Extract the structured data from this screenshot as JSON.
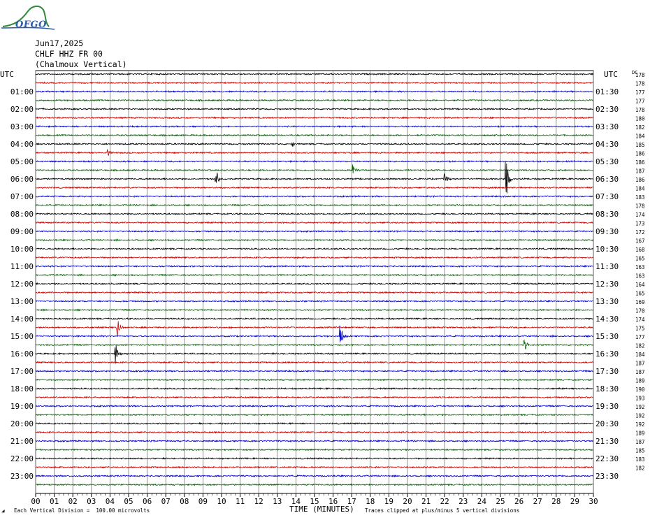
{
  "header": {
    "logo_text": "OFGO",
    "date": "Jun17,2025",
    "station": "CHLF HHZ FR 00",
    "location": "(Chalmoux Vertical)"
  },
  "chart_data": {
    "type": "line",
    "title": "",
    "left_axis_label": "UTC",
    "right_axis_label": "UTC",
    "dc_label": "DC",
    "left_hour_labels": [
      "01:00",
      "02:00",
      "03:00",
      "04:00",
      "05:00",
      "06:00",
      "07:00",
      "08:00",
      "09:00",
      "10:00",
      "11:00",
      "12:00",
      "13:00",
      "14:00",
      "15:00",
      "16:00",
      "17:00",
      "18:00",
      "19:00",
      "20:00",
      "21:00",
      "22:00",
      "23:00"
    ],
    "right_hour_labels": [
      "01:30",
      "02:30",
      "03:30",
      "04:30",
      "05:30",
      "06:30",
      "07:30",
      "08:30",
      "09:30",
      "10:30",
      "11:30",
      "12:30",
      "13:30",
      "14:30",
      "15:30",
      "16:30",
      "17:30",
      "18:30",
      "19:30",
      "20:30",
      "21:30",
      "22:30",
      "23:30"
    ],
    "dc_offsets": [
      "178",
      "178",
      "177",
      "177",
      "178",
      "180",
      "182",
      "184",
      "185",
      "186",
      "186",
      "187",
      "186",
      "184",
      "183",
      "178",
      "174",
      "173",
      "172",
      "167",
      "168",
      "165",
      "163",
      "163",
      "164",
      "165",
      "169",
      "170",
      "174",
      "175",
      "177",
      "182",
      "184",
      "187",
      "187",
      "189",
      "190",
      "193",
      "192",
      "192",
      "192",
      "189",
      "187",
      "185",
      "183",
      "182"
    ],
    "x_ticks": [
      "00",
      "01",
      "02",
      "03",
      "04",
      "05",
      "06",
      "07",
      "08",
      "09",
      "10",
      "11",
      "12",
      "13",
      "14",
      "15",
      "16",
      "17",
      "18",
      "19",
      "20",
      "21",
      "22",
      "23",
      "24",
      "25",
      "26",
      "27",
      "28",
      "29",
      "30"
    ],
    "xlabel": "TIME (MINUTES)",
    "xlim": [
      0,
      30
    ],
    "trace_colors": [
      "#000000",
      "#cc0000",
      "#0000cc",
      "#006600"
    ],
    "events": [
      {
        "trace": 8,
        "minute": 13.8,
        "amp": 0.4
      },
      {
        "trace": 9,
        "minute": 3.9,
        "amp": 0.5
      },
      {
        "trace": 11,
        "minute": 17.1,
        "amp": 1.0
      },
      {
        "trace": 12,
        "minute": 9.7,
        "amp": 1.4
      },
      {
        "trace": 12,
        "minute": 22.0,
        "amp": 0.9
      },
      {
        "trace": 12,
        "minute": 25.3,
        "amp": 3.0
      },
      {
        "trace": 29,
        "minute": 4.4,
        "amp": 1.5
      },
      {
        "trace": 30,
        "minute": 16.4,
        "amp": 1.4
      },
      {
        "trace": 31,
        "minute": 26.3,
        "amp": 0.9
      },
      {
        "trace": 32,
        "minute": 4.3,
        "amp": 1.5
      }
    ],
    "footer_left": "Each Vertical Division =  100.00 microvolts",
    "footer_right": "Traces clipped at plus/minus 5 vertical divisions"
  }
}
